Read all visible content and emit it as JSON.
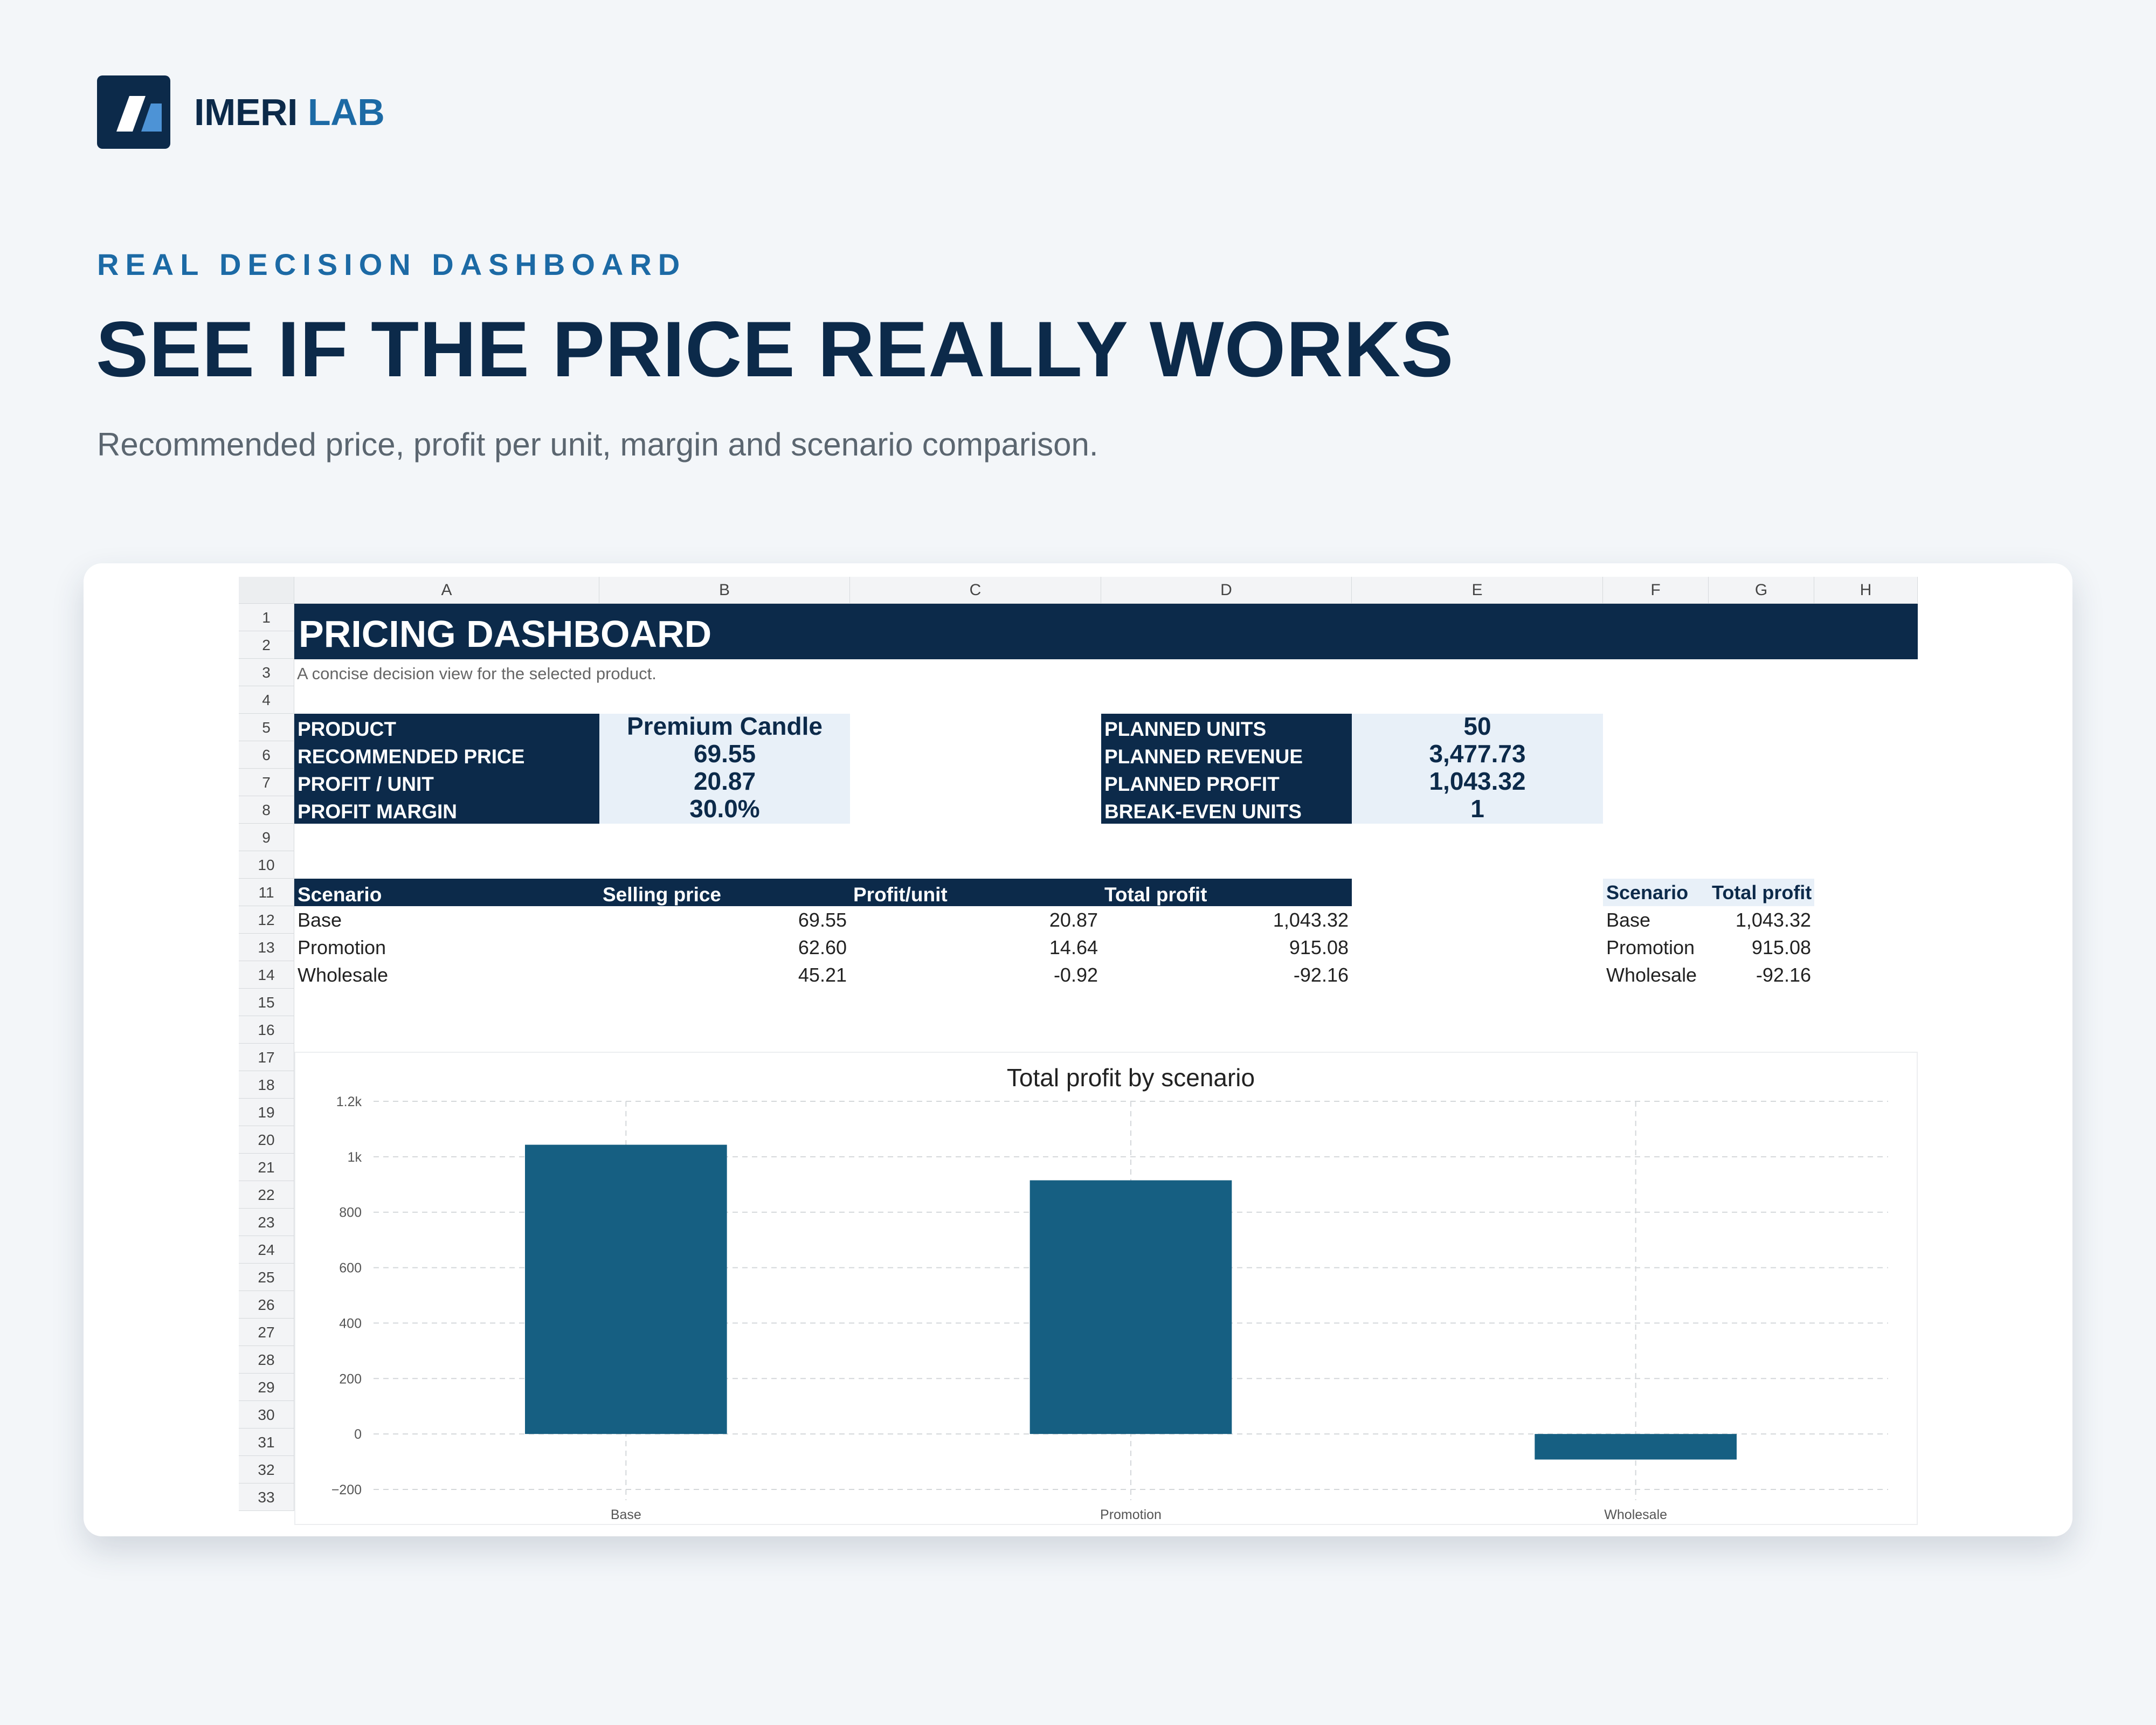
{
  "brand": {
    "name_part1": "IMERI",
    "name_part2": "LAB"
  },
  "hero": {
    "eyebrow": "REAL DECISION DASHBOARD",
    "headline": "SEE IF THE PRICE REALLY WORKS",
    "subtitle": "Recommended price, profit per unit, margin and scenario comparison."
  },
  "sheet": {
    "columns": [
      "A",
      "B",
      "C",
      "D",
      "E",
      "F",
      "G",
      "H"
    ],
    "rows": [
      "1",
      "2",
      "3",
      "4",
      "5",
      "6",
      "7",
      "8",
      "9",
      "10",
      "11",
      "12",
      "13",
      "14",
      "15",
      "16",
      "17",
      "18",
      "19",
      "20",
      "21",
      "22",
      "23",
      "24",
      "25",
      "26",
      "27",
      "28",
      "29",
      "30",
      "31",
      "32",
      "33"
    ],
    "title": "PRICING DASHBOARD",
    "subtitle": "A concise decision view for the selected product.",
    "kpis_left": [
      {
        "label": "PRODUCT",
        "value": "Premium Candle"
      },
      {
        "label": "RECOMMENDED PRICE",
        "value": "69.55"
      },
      {
        "label": "PROFIT / UNIT",
        "value": "20.87"
      },
      {
        "label": "PROFIT MARGIN",
        "value": "30.0%"
      }
    ],
    "kpis_right": [
      {
        "label": "PLANNED UNITS",
        "value": "50"
      },
      {
        "label": "PLANNED REVENUE",
        "value": "3,477.73"
      },
      {
        "label": "PLANNED PROFIT",
        "value": "1,043.32"
      },
      {
        "label": "BREAK-EVEN UNITS",
        "value": "1"
      }
    ],
    "scenario_table": {
      "headers": [
        "Scenario",
        "Selling price",
        "Profit/unit",
        "Total profit"
      ],
      "rows": [
        {
          "scenario": "Base",
          "price": "69.55",
          "profit_unit": "20.87",
          "total": "1,043.32"
        },
        {
          "scenario": "Promotion",
          "price": "62.60",
          "profit_unit": "14.64",
          "total": "915.08"
        },
        {
          "scenario": "Wholesale",
          "price": "45.21",
          "profit_unit": "-0.92",
          "total": "-92.16"
        }
      ]
    },
    "mini_table": {
      "headers": [
        "Scenario",
        "Total profit"
      ],
      "rows": [
        {
          "scenario": "Base",
          "total": "1,043.32"
        },
        {
          "scenario": "Promotion",
          "total": "915.08"
        },
        {
          "scenario": "Wholesale",
          "total": "-92.16"
        }
      ]
    }
  },
  "chart_data": {
    "type": "bar",
    "title": "Total profit by scenario",
    "categories": [
      "Base",
      "Promotion",
      "Wholesale"
    ],
    "values": [
      1043.32,
      915.08,
      -92.16
    ],
    "ylim": [
      -200,
      1200
    ],
    "yticks": [
      -200,
      0,
      200,
      400,
      600,
      800,
      1000,
      1200
    ],
    "ytick_labels": [
      "−200",
      "0",
      "200",
      "400",
      "600",
      "800",
      "1k",
      "1.2k"
    ],
    "grid": true,
    "bar_color": "#165f82"
  },
  "colors": {
    "navy": "#0c2a4a",
    "accent": "#1c6aa5",
    "bar": "#165f82",
    "kpi_bg": "#e8f0f8"
  }
}
